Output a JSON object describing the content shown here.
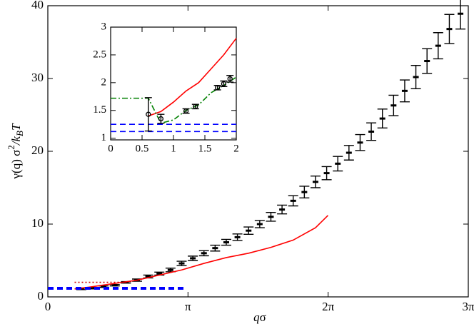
{
  "chart_data": [
    {
      "type": "errorbar-line",
      "xlabel": [
        "q",
        "σ"
      ],
      "ylabel": [
        "γ(q) σ",
        "2",
        "/k",
        "B",
        "T"
      ],
      "xlim": [
        0,
        9.42478
      ],
      "ylim": [
        0,
        40
      ],
      "xticks": [
        0,
        {
          "value": 3.14159,
          "label": "π"
        },
        {
          "value": 6.28319,
          "label": "2π"
        },
        {
          "value": 9.42478,
          "label": "3π"
        }
      ],
      "yticks": [
        0,
        10,
        20,
        30,
        40
      ],
      "series": [
        {
          "kind": "errorbar",
          "marker": "bar",
          "color": "#000000",
          "x": [
            0.75,
            1.0,
            1.25,
            1.5,
            1.75,
            2.0,
            2.25,
            2.5,
            2.75,
            3.0,
            3.25,
            3.5,
            3.75,
            4.0,
            4.25,
            4.5,
            4.75,
            5.0,
            5.25,
            5.5,
            5.75,
            6.0,
            6.25,
            6.5,
            6.75,
            7.0,
            7.25,
            7.5,
            7.75,
            8.0,
            8.25,
            8.5,
            8.75,
            9.0,
            9.25
          ],
          "values": [
            1.1,
            1.2,
            1.4,
            1.6,
            2.0,
            2.3,
            2.8,
            3.2,
            3.7,
            4.6,
            5.3,
            6.0,
            6.7,
            7.5,
            8.2,
            9.1,
            10.0,
            11.0,
            12.0,
            13.2,
            14.4,
            15.8,
            17.0,
            18.3,
            19.8,
            21.2,
            22.7,
            24.5,
            26.3,
            28.3,
            30.2,
            32.4,
            34.5,
            36.8,
            38.9
          ],
          "errors": [
            0.1,
            0.1,
            0.1,
            0.1,
            0.1,
            0.15,
            0.2,
            0.2,
            0.25,
            0.3,
            0.3,
            0.35,
            0.4,
            0.4,
            0.45,
            0.5,
            0.5,
            0.6,
            0.6,
            0.7,
            0.8,
            0.8,
            0.9,
            1.0,
            1.0,
            1.1,
            1.2,
            1.3,
            1.4,
            1.5,
            1.6,
            1.7,
            1.8,
            2.0,
            2.1
          ]
        },
        {
          "kind": "line",
          "style": "solid",
          "color": "#ff0000",
          "x": [
            0.6,
            1.0,
            2.0,
            3.0,
            3.5,
            4.0,
            4.5,
            5.0,
            5.5,
            6.0,
            6.28
          ],
          "values": [
            1.1,
            1.4,
            2.3,
            3.7,
            4.6,
            5.4,
            6.0,
            6.8,
            7.8,
            9.5,
            11.2
          ]
        },
        {
          "kind": "line",
          "style": "dotted",
          "color": "#cc0000",
          "x": [
            0.6,
            1.8
          ],
          "values": [
            2.0,
            2.0
          ]
        },
        {
          "kind": "line",
          "style": "dashed",
          "color": "#0000ff",
          "x": [
            0,
            3.06
          ],
          "values": [
            1.25,
            1.25
          ]
        },
        {
          "kind": "line",
          "style": "dashed",
          "color": "#0000ff",
          "x": [
            0,
            3.06
          ],
          "values": [
            1.1,
            1.1
          ]
        }
      ]
    },
    {
      "type": "errorbar-line",
      "xlim": [
        0,
        2
      ],
      "ylim": [
        0.97,
        3
      ],
      "xticks": [
        0,
        0.5,
        1,
        1.5,
        2
      ],
      "yticks": [
        1,
        1.5,
        2,
        2.5,
        3
      ],
      "series": [
        {
          "kind": "line",
          "style": "solid",
          "color": "#ff0000",
          "x": [
            0.6,
            0.8,
            1.0,
            1.2,
            1.4,
            1.6,
            1.8,
            2.0
          ],
          "values": [
            1.4,
            1.48,
            1.65,
            1.85,
            2.0,
            2.25,
            2.5,
            2.8
          ]
        },
        {
          "kind": "line",
          "style": "dashdot",
          "color": "#008000",
          "x": [
            0,
            0.6,
            0.8,
            1.0,
            1.2,
            1.4,
            1.6,
            1.8,
            2.0
          ],
          "values": [
            1.72,
            1.72,
            1.27,
            1.33,
            1.5,
            1.6,
            1.82,
            1.95,
            2.1
          ]
        },
        {
          "kind": "line",
          "style": "dashed",
          "color": "#0000ff",
          "x": [
            0,
            2
          ],
          "values": [
            1.25,
            1.25
          ]
        },
        {
          "kind": "line",
          "style": "dashed",
          "color": "#0000ff",
          "x": [
            0,
            2
          ],
          "values": [
            1.12,
            1.12
          ]
        },
        {
          "kind": "errorbar",
          "marker": "circle",
          "color": "#000000",
          "x": [
            0.6,
            0.8,
            1.2,
            1.35,
            1.7,
            1.8,
            1.9
          ],
          "values": [
            1.43,
            1.35,
            1.49,
            1.57,
            1.91,
            1.98,
            2.07
          ],
          "errors": [
            0.3,
            0.08,
            0.04,
            0.04,
            0.04,
            0.05,
            0.06
          ]
        }
      ]
    }
  ]
}
